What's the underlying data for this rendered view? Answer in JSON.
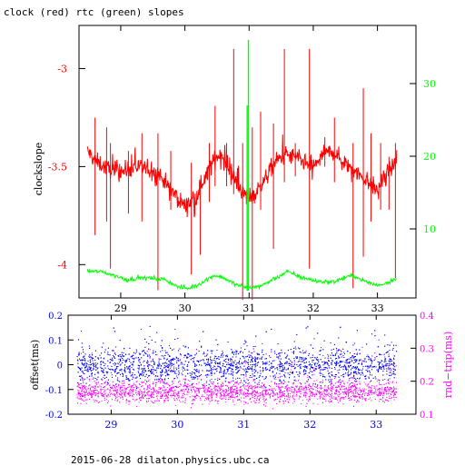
{
  "title": "clock (red) rtc (green) slopes",
  "footer": "2015-06-28 dilaton.physics.ubc.ca",
  "colors": {
    "red": "#ff0000",
    "green": "#00ff00",
    "blue": "#0000ff",
    "magenta": "#ff00ff",
    "axis": "#000000"
  },
  "chart_data": [
    {
      "type": "line",
      "xlim": [
        28.35,
        33.6
      ],
      "xticks": [
        "29",
        "30",
        "31",
        "32",
        "33"
      ],
      "x_tick_values": [
        29,
        30,
        31,
        32,
        33
      ],
      "ylabel": "clockslope",
      "ylim": [
        -4.17,
        -2.78
      ],
      "yticks": [
        "-3",
        "-3.5",
        "-4"
      ],
      "y_tick_values": [
        -3,
        -3.5,
        -4
      ],
      "y2lim": [
        0.5,
        38
      ],
      "y2ticks": [
        "10",
        "20",
        "30"
      ],
      "y2_tick_values": [
        10,
        20,
        30
      ],
      "series": [
        {
          "axis": "left",
          "color": "red",
          "points": [
            [
              28.48,
              -3.42
            ],
            [
              28.6,
              -3.47
            ],
            [
              28.8,
              -3.51
            ],
            [
              29.0,
              -3.53
            ],
            [
              29.2,
              -3.5
            ],
            [
              29.4,
              -3.51
            ],
            [
              29.6,
              -3.54
            ],
            [
              29.8,
              -3.63
            ],
            [
              30.0,
              -3.7
            ],
            [
              30.15,
              -3.67
            ],
            [
              30.3,
              -3.56
            ],
            [
              30.45,
              -3.47
            ],
            [
              30.55,
              -3.43
            ],
            [
              30.65,
              -3.49
            ],
            [
              30.8,
              -3.58
            ],
            [
              30.95,
              -3.65
            ],
            [
              31.1,
              -3.64
            ],
            [
              31.25,
              -3.56
            ],
            [
              31.4,
              -3.48
            ],
            [
              31.55,
              -3.44
            ],
            [
              31.7,
              -3.45
            ],
            [
              31.85,
              -3.48
            ],
            [
              32.0,
              -3.5
            ],
            [
              32.15,
              -3.44
            ],
            [
              32.3,
              -3.42
            ],
            [
              32.45,
              -3.47
            ],
            [
              32.6,
              -3.51
            ],
            [
              32.8,
              -3.56
            ],
            [
              33.0,
              -3.62
            ],
            [
              33.15,
              -3.53
            ],
            [
              33.3,
              -3.48
            ]
          ],
          "spikes": [
            [
              28.6,
              -3.25,
              -3.85
            ],
            [
              28.78,
              -3.3,
              -3.78
            ],
            [
              28.84,
              -3.38,
              -4.02
            ],
            [
              29.12,
              -3.42,
              -3.74
            ],
            [
              29.33,
              -3.33,
              -3.78
            ],
            [
              29.58,
              -3.33,
              -4.13
            ],
            [
              29.78,
              -3.42,
              -3.72
            ],
            [
              30.1,
              -3.48,
              -4.05
            ],
            [
              30.24,
              -3.58,
              -3.95
            ],
            [
              30.38,
              -3.38,
              -3.68
            ],
            [
              30.47,
              -3.19,
              -3.6
            ],
            [
              30.65,
              -3.38,
              -3.6
            ],
            [
              30.76,
              -2.9,
              -3.64
            ],
            [
              30.9,
              -3.38,
              -4.18
            ],
            [
              31.05,
              -3.3,
              -4.18
            ],
            [
              31.18,
              -3.22,
              -3.72
            ],
            [
              31.38,
              -3.28,
              -3.92
            ],
            [
              31.55,
              -2.9,
              -3.58
            ],
            [
              31.72,
              -3.38,
              -3.55
            ],
            [
              31.94,
              -2.9,
              -4.02
            ],
            [
              32.18,
              -3.35,
              -3.5
            ],
            [
              32.33,
              -3.25,
              -3.58
            ],
            [
              32.62,
              -3.38,
              -4.12
            ],
            [
              32.78,
              -3.1,
              -3.96
            ],
            [
              32.9,
              -3.33,
              -3.78
            ],
            [
              33.05,
              -3.38,
              -3.72
            ],
            [
              33.18,
              -3.45,
              -3.72
            ],
            [
              33.28,
              -3.38,
              -4.07
            ]
          ]
        },
        {
          "axis": "right",
          "color": "green",
          "points": [
            [
              28.48,
              4.2
            ],
            [
              28.7,
              4.1
            ],
            [
              28.9,
              3.6
            ],
            [
              29.1,
              3.0
            ],
            [
              29.3,
              3.3
            ],
            [
              29.5,
              3.2
            ],
            [
              29.7,
              3.0
            ],
            [
              29.9,
              2.0
            ],
            [
              30.05,
              1.8
            ],
            [
              30.2,
              2.3
            ],
            [
              30.45,
              3.6
            ],
            [
              30.6,
              3.3
            ],
            [
              30.8,
              2.3
            ],
            [
              31.0,
              1.9
            ],
            [
              31.2,
              2.2
            ],
            [
              31.4,
              3.2
            ],
            [
              31.6,
              4.1
            ],
            [
              31.8,
              3.4
            ],
            [
              32.05,
              2.8
            ],
            [
              32.3,
              2.7
            ],
            [
              32.5,
              3.3
            ],
            [
              32.62,
              3.6
            ],
            [
              32.8,
              2.8
            ],
            [
              33.0,
              2.2
            ],
            [
              33.15,
              2.6
            ],
            [
              33.3,
              3.3
            ]
          ],
          "spikes": [
            [
              30.99,
              1.5,
              36
            ],
            [
              30.97,
              1.5,
              27
            ]
          ]
        }
      ]
    },
    {
      "type": "scatter",
      "xlim": [
        28.35,
        33.6
      ],
      "xticks": [
        "29",
        "30",
        "31",
        "32",
        "33"
      ],
      "x_tick_values": [
        29,
        30,
        31,
        32,
        33
      ],
      "ylabel": "offset(ms)",
      "ylim": [
        -0.2,
        0.2
      ],
      "yticks": [
        "0.2",
        "0.1",
        "0",
        "-0.1",
        "-0.2"
      ],
      "y_tick_values": [
        0.2,
        0.1,
        0,
        -0.1,
        -0.2
      ],
      "y2label": "rnd−trip(ms)",
      "y2lim": [
        0.1,
        0.4
      ],
      "y2ticks": [
        "0.4",
        "0.3",
        "0.2",
        "0.1"
      ],
      "y2_tick_values": [
        0.4,
        0.3,
        0.2,
        0.1
      ],
      "series": [
        {
          "axis": "left",
          "color": "blue",
          "x_range": [
            28.48,
            33.3
          ],
          "center": 0.0,
          "core_spread": 0.035,
          "outlier_range": [
            -0.07,
            0.16
          ]
        },
        {
          "axis": "right",
          "color": "magenta",
          "x_range": [
            28.48,
            33.3
          ],
          "center": 0.17,
          "core_spread": 0.017,
          "outlier_range": [
            0.15,
            0.3
          ]
        }
      ]
    }
  ]
}
